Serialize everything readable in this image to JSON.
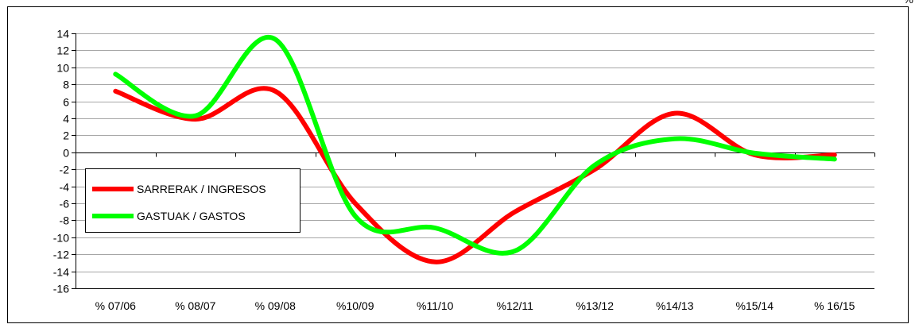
{
  "chart_data": {
    "type": "line",
    "unit": "%",
    "categories": [
      "% 07/06",
      "% 08/07",
      "% 09/08",
      "%10/09",
      "%11/10",
      "%12/11",
      "%13/12",
      "%14/13",
      "%15/14",
      "% 16/15"
    ],
    "series": [
      {
        "name": "SARRERAK / INGRESOS",
        "color": "#ff0000",
        "values": [
          7.2,
          3.9,
          7.2,
          -6.0,
          -12.9,
          -7.0,
          -2.0,
          4.6,
          -0.3,
          -0.3
        ]
      },
      {
        "name": "GASTUAK / GASTOS",
        "color": "#00ff00",
        "values": [
          9.2,
          4.3,
          13.3,
          -7.5,
          -8.9,
          -11.6,
          -1.5,
          1.6,
          -0.1,
          -0.8
        ]
      }
    ],
    "ylim": [
      -16,
      14
    ],
    "ytick_step": 2,
    "grid": true,
    "legend_position": "center-left"
  }
}
